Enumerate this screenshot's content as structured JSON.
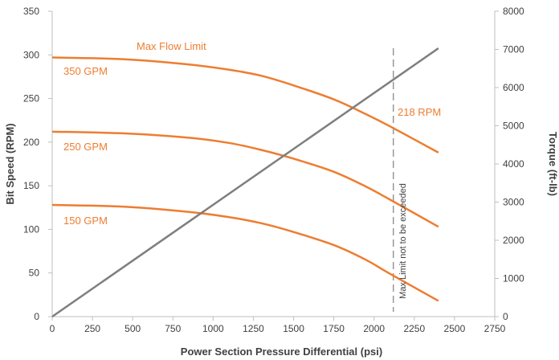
{
  "chart_data": {
    "type": "line",
    "title": "",
    "xlabel": "Power Section Pressure Differential (psi)",
    "ylabel": "Bit Speed (RPM)",
    "y2label": "Torque (ft-lb)",
    "xlim": [
      0,
      2750
    ],
    "ylim": [
      0,
      350
    ],
    "y2lim": [
      0,
      8000
    ],
    "x_ticks": [
      "0",
      "250",
      "500",
      "750",
      "1000",
      "1250",
      "1500",
      "1750",
      "2000",
      "2250",
      "2500",
      "2750"
    ],
    "y_ticks": [
      "0",
      "50",
      "100",
      "150",
      "200",
      "250",
      "300",
      "350"
    ],
    "y2_ticks": [
      "0",
      "1000",
      "2000",
      "3000",
      "4000",
      "5000",
      "6000",
      "7000",
      "8000"
    ],
    "grid": false,
    "colors": {
      "rpm": "#ED7D31",
      "torque": "#7F7F7F",
      "limit": "#7F7F7F"
    },
    "series": [
      {
        "name": "350 GPM",
        "axis": "left",
        "x": [
          0,
          450,
          850,
          1100,
          1300,
          1500,
          1750,
          1950,
          2100,
          2400
        ],
        "y": [
          297,
          295,
          289,
          283,
          276,
          265,
          249,
          232,
          218,
          188
        ]
      },
      {
        "name": "250 GPM",
        "axis": "left",
        "x": [
          0,
          450,
          850,
          1100,
          1300,
          1500,
          1750,
          1950,
          2100,
          2400
        ],
        "y": [
          212,
          210,
          205,
          199,
          191,
          181,
          166,
          149,
          134,
          103
        ]
      },
      {
        "name": "150 GPM",
        "axis": "left",
        "x": [
          0,
          450,
          850,
          1100,
          1300,
          1500,
          1750,
          1950,
          2100,
          2400
        ],
        "y": [
          128,
          126,
          120,
          114,
          107,
          97,
          82,
          65,
          49,
          18
        ]
      },
      {
        "name": "",
        "axis": "right",
        "x": [
          0,
          2400
        ],
        "y": [
          0,
          7030
        ]
      }
    ],
    "limit_line": {
      "x": 2120
    },
    "annotations": {
      "max_flow": "Max Flow Limit",
      "gpm350": "350 GPM",
      "gpm250": "250 GPM",
      "gpm150": "150 GPM",
      "rpm218": "218 RPM",
      "max_limit": "Max Limit not to be exceeded"
    }
  }
}
